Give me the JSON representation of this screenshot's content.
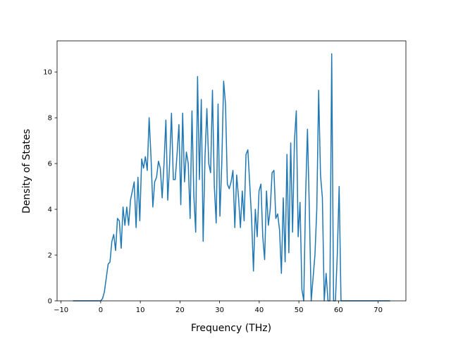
{
  "chart_data": {
    "type": "line",
    "xlabel": "Frequency (THz)",
    "ylabel": "Density of States",
    "color": "#1f77b4",
    "x": [
      -7,
      0,
      0.47,
      0.94,
      1.41,
      1.88,
      2.35,
      2.82,
      3.29,
      3.76,
      4.23,
      4.7,
      5.17,
      5.64,
      6.11,
      6.58,
      7.05,
      7.52,
      7.99,
      8.46,
      8.93,
      9.4,
      9.87,
      10.34,
      10.81,
      11.28,
      11.75,
      12.22,
      12.69,
      13.16,
      13.63,
      14.1,
      14.57,
      15.04,
      15.51,
      15.98,
      16.45,
      16.92,
      17.39,
      17.86,
      18.33,
      18.8,
      19.27,
      19.74,
      20.21,
      20.68,
      21.15,
      21.62,
      22.09,
      22.56,
      23.03,
      23.5,
      23.97,
      24.44,
      24.91,
      25.38,
      25.85,
      26.32,
      26.79,
      27.26,
      27.73,
      28.2,
      28.67,
      29.14,
      29.61,
      30.08,
      30.55,
      31.02,
      31.49,
      31.96,
      32.43,
      32.9,
      33.37,
      33.84,
      34.31,
      34.78,
      35.25,
      35.72,
      36.19,
      36.66,
      37.13,
      37.6,
      38.07,
      38.54,
      39.01,
      39.48,
      39.95,
      40.42,
      40.89,
      41.36,
      41.83,
      42.3,
      42.77,
      43.24,
      43.71,
      44.18,
      44.65,
      45.12,
      45.59,
      46.06,
      46.53,
      47.0,
      47.47,
      47.94,
      48.41,
      48.88,
      49.35,
      49.82,
      50.29,
      50.76,
      51.23,
      51.7,
      52.17,
      52.64,
      53.11,
      53.58,
      54.05,
      54.52,
      54.99,
      55.46,
      55.93,
      56.4,
      56.87,
      57.34,
      57.81,
      58.28,
      58.75,
      59.22,
      59.69,
      60.16,
      60.63,
      73
    ],
    "values": [
      0,
      0,
      0.1,
      0.4,
      1.0,
      1.6,
      1.7,
      2.6,
      2.9,
      2.2,
      3.6,
      3.5,
      2.3,
      4.1,
      3.3,
      4.1,
      3.3,
      4.4,
      4.8,
      5.2,
      3.2,
      5.4,
      3.5,
      6.2,
      5.8,
      6.3,
      5.7,
      8.0,
      6.3,
      4.1,
      5.2,
      5.4,
      6.1,
      5.8,
      4.5,
      6.0,
      7.9,
      4.4,
      6.0,
      8.2,
      5.3,
      5.3,
      6.4,
      7.7,
      4.2,
      8.2,
      5.2,
      6.5,
      6.0,
      3.6,
      8.3,
      4.6,
      3.0,
      9.8,
      5.3,
      8.8,
      2.6,
      6.3,
      8.4,
      6.0,
      5.6,
      9.2,
      5.0,
      3.4,
      8.6,
      3.7,
      6.0,
      9.6,
      8.6,
      5.1,
      4.9,
      5.2,
      5.7,
      3.2,
      5.5,
      4.5,
      3.2,
      4.8,
      3.5,
      6.4,
      6.6,
      5.1,
      3.6,
      1.3,
      4.0,
      2.8,
      4.8,
      5.1,
      2.8,
      1.8,
      4.8,
      3.3,
      4.0,
      5.6,
      5.7,
      3.6,
      3.8,
      3.1,
      1.2,
      4.5,
      1.7,
      6.4,
      2.1,
      6.9,
      3.0,
      7.0,
      8.3,
      2.8,
      4.3,
      0.5,
      0,
      4.6,
      7.5,
      4.0,
      0,
      1.0,
      2.0,
      4.0,
      9.2,
      5.5,
      4.5,
      0,
      1.2,
      0,
      0,
      10.8,
      0,
      0,
      2.0,
      5.0,
      0,
      0
    ],
    "xlim": [
      -11,
      77
    ],
    "xticks": [
      {
        "value": -10,
        "label": "−10"
      },
      0,
      10,
      20,
      30,
      40,
      50,
      60,
      70
    ],
    "ylim": [
      0,
      11.36
    ],
    "yticks": [
      0,
      2,
      4,
      6,
      8,
      10
    ]
  }
}
